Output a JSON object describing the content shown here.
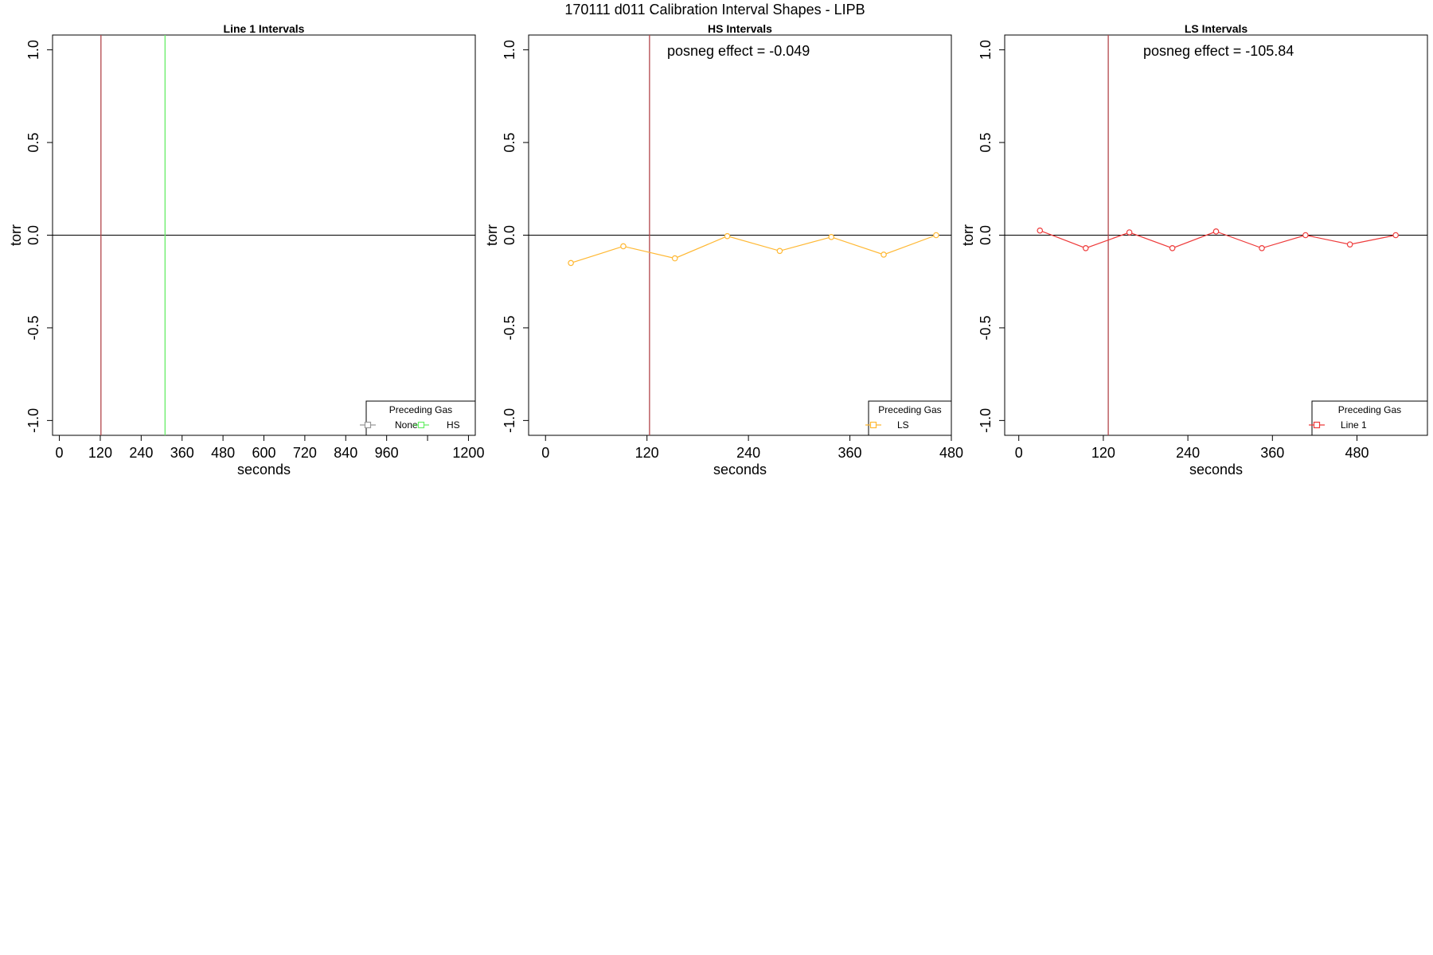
{
  "figure": {
    "title": "170111   d011   Calibration Interval Shapes - LIPB"
  },
  "chart_data": [
    {
      "type": "line",
      "title": "Line 1 Intervals",
      "xlabel": "seconds",
      "ylabel": "torr",
      "xlim": [
        -20,
        1220
      ],
      "ylim": [
        -1.08,
        1.08
      ],
      "xticks": [
        0,
        120,
        240,
        360,
        480,
        600,
        720,
        840,
        960,
        1080,
        1200
      ],
      "xtick_labels": [
        "0",
        "120",
        "240",
        "360",
        "480",
        "600",
        "720",
        "840",
        "960",
        "",
        "1200"
      ],
      "yticks": [
        -1.0,
        -0.5,
        0.0,
        0.5,
        1.0
      ],
      "ytick_labels": [
        "-1.0",
        "-0.5",
        "0.0",
        "0.5",
        "1.0"
      ],
      "hlines": [
        {
          "y": 0,
          "color": "#000000"
        }
      ],
      "vlines": [
        {
          "x": 122,
          "color": "#b2454a"
        },
        {
          "x": 310,
          "color": "#66ee66"
        }
      ],
      "annotation": "",
      "series": [],
      "legend": {
        "title": "Preceding Gas",
        "position": "bottom-right",
        "entries": [
          {
            "label": "None",
            "color": "#999999"
          },
          {
            "label": "HS",
            "color": "#66ee66"
          }
        ]
      }
    },
    {
      "type": "line",
      "title": "HS Intervals",
      "xlabel": "seconds",
      "ylabel": "torr",
      "xlim": [
        -20,
        480
      ],
      "ylim": [
        -1.08,
        1.08
      ],
      "xticks": [
        0,
        120,
        240,
        360,
        480
      ],
      "xtick_labels": [
        "0",
        "120",
        "240",
        "360",
        "480"
      ],
      "yticks": [
        -1.0,
        -0.5,
        0.0,
        0.5,
        1.0
      ],
      "ytick_labels": [
        "-1.0",
        "-0.5",
        "0.0",
        "0.5",
        "1.0"
      ],
      "hlines": [
        {
          "y": 0,
          "color": "#000000"
        }
      ],
      "vlines": [
        {
          "x": 123,
          "color": "#b2454a"
        }
      ],
      "annotation": "posneg effect = -0.049",
      "series": [
        {
          "color": "#ffb833",
          "x": [
            30,
            92,
            153,
            215,
            277,
            338,
            400,
            462
          ],
          "y": [
            -0.15,
            -0.06,
            -0.125,
            -0.005,
            -0.085,
            -0.01,
            -0.105,
            0.0
          ]
        }
      ],
      "legend": {
        "title": "Preceding Gas",
        "position": "bottom-right",
        "entries": [
          {
            "label": "LS",
            "color": "#ffb833"
          }
        ]
      }
    },
    {
      "type": "line",
      "title": "LS Intervals",
      "xlabel": "seconds",
      "ylabel": "torr",
      "xlim": [
        -20,
        580
      ],
      "ylim": [
        -1.08,
        1.08
      ],
      "xticks": [
        0,
        120,
        240,
        360,
        480
      ],
      "xtick_labels": [
        "0",
        "120",
        "240",
        "360",
        "480"
      ],
      "yticks": [
        -1.0,
        -0.5,
        0.0,
        0.5,
        1.0
      ],
      "ytick_labels": [
        "-1.0",
        "-0.5",
        "0.0",
        "0.5",
        "1.0"
      ],
      "hlines": [
        {
          "y": 0,
          "color": "#000000"
        }
      ],
      "vlines": [
        {
          "x": 127,
          "color": "#b2454a"
        }
      ],
      "annotation": "posneg effect = -105.84",
      "series": [
        {
          "color": "#ee3b3b",
          "x": [
            30,
            95,
            157,
            218,
            280,
            345,
            407,
            470,
            535
          ],
          "y": [
            0.025,
            -0.07,
            0.015,
            -0.07,
            0.02,
            -0.07,
            0.0,
            -0.05,
            0.0
          ]
        }
      ],
      "legend": {
        "title": "Preceding Gas",
        "position": "bottom-right",
        "entries": [
          {
            "label": "Line 1",
            "color": "#ee3b3b"
          }
        ]
      }
    }
  ]
}
